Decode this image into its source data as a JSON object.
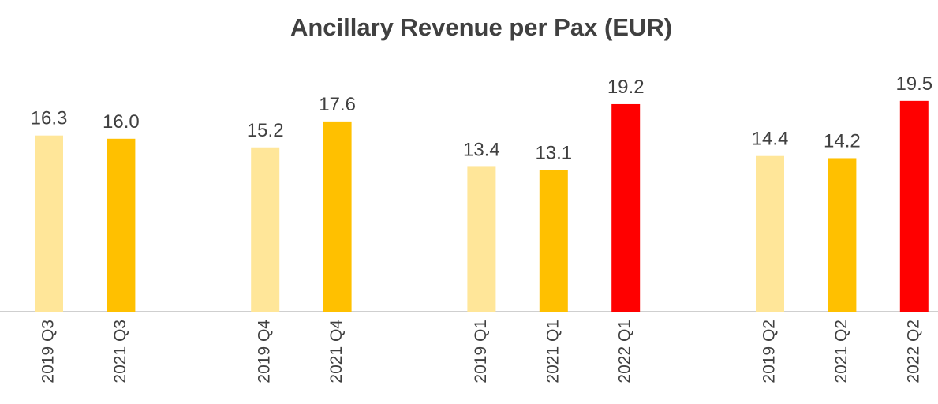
{
  "chart_data": {
    "type": "bar",
    "title": "Ancillary Revenue per Pax (EUR)",
    "categories": [
      "2019 Q3",
      "2021 Q3",
      null,
      "2019 Q4",
      "2021 Q4",
      null,
      "2019 Q1",
      "2021 Q1",
      "2022 Q1",
      null,
      "2019 Q2",
      "2021 Q2",
      "2022 Q2"
    ],
    "values": [
      16.3,
      16.0,
      null,
      15.2,
      17.6,
      null,
      13.4,
      13.1,
      19.2,
      null,
      14.4,
      14.2,
      19.5
    ],
    "value_labels": [
      "16.3",
      "16.0",
      null,
      "15.2",
      "17.6",
      null,
      "13.4",
      "13.1",
      "19.2",
      null,
      "14.4",
      "14.2",
      "19.5"
    ],
    "colors": [
      "#FFE699",
      "#FFC000",
      null,
      "#FFE699",
      "#FFC000",
      null,
      "#FFE699",
      "#FFC000",
      "#FF0000",
      null,
      "#FFE699",
      "#FFC000",
      "#FF0000"
    ]
  }
}
